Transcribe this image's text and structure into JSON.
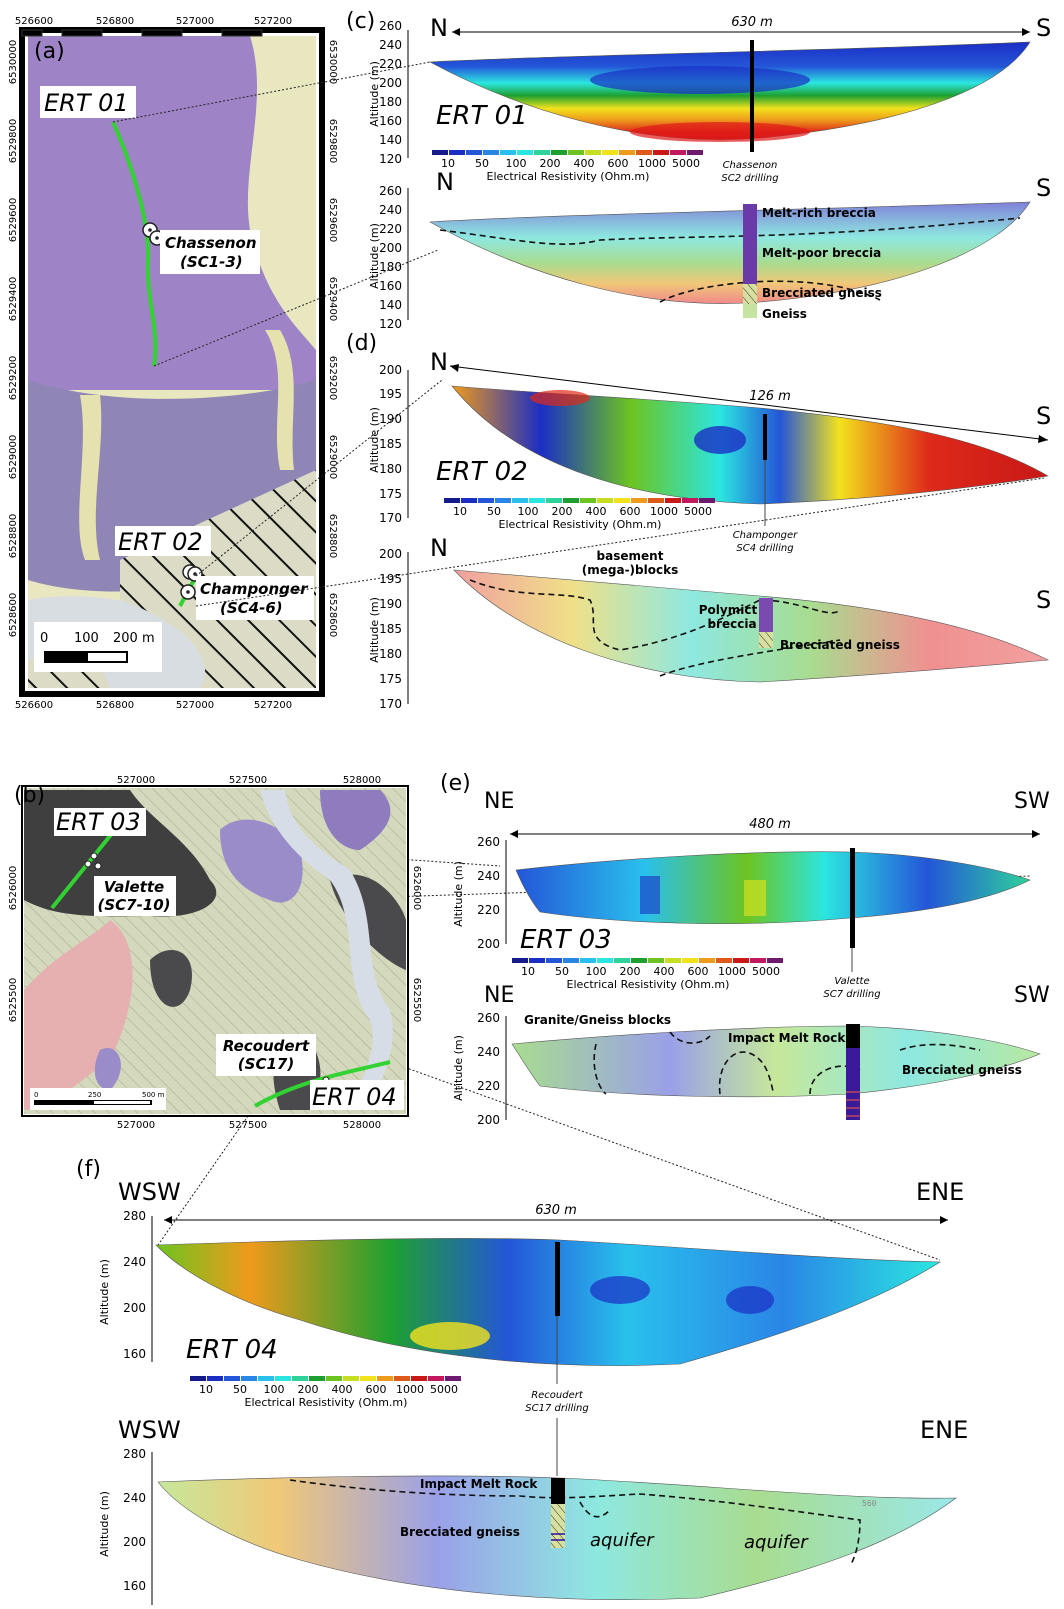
{
  "panels": {
    "a": {
      "label": "(a)",
      "top_ticks": [
        "526600",
        "526800",
        "527000",
        "527200"
      ],
      "bottom_ticks": [
        "526600",
        "526800",
        "527000",
        "527200"
      ],
      "left_ticks": [
        "6530000",
        "6529800",
        "6529600",
        "6529400",
        "6529200",
        "6529000",
        "6528800",
        "6528600"
      ],
      "right_ticks": [
        "6530000",
        "6529800",
        "6529600",
        "6529400",
        "6529200",
        "6529000",
        "6528800",
        "6528600"
      ],
      "ert01_label": "ERT 01",
      "ert02_label": "ERT 02",
      "site1_line1": "Chassenon",
      "site1_line2": "(SC1-3)",
      "site2_line1": "Champonger",
      "site2_line2": "(SC4-6)",
      "scale_labels": [
        "0",
        "100",
        "200 m"
      ]
    },
    "b": {
      "label": "(b)",
      "top_ticks": [
        "527000",
        "527500",
        "528000"
      ],
      "bottom_ticks": [
        "527000",
        "527500",
        "528000"
      ],
      "left_ticks": [
        "6526000",
        "6525500"
      ],
      "right_ticks": [
        "6526000",
        "6525500"
      ],
      "ert03_label": "ERT 03",
      "ert04_label": "ERT 04",
      "site1_line1": "Valette",
      "site1_line2": "(SC7-10)",
      "site2_line1": "Recoudert",
      "site2_line2": "(SC17)",
      "scale_labels": [
        "0",
        "250",
        "500 m"
      ]
    },
    "c": {
      "label": "(c)",
      "left_dir": "N",
      "right_dir": "S",
      "distance": "630 m",
      "profile_name": "ERT 01",
      "ylabel": "Altitude (m)",
      "yticks_top": [
        "260",
        "240",
        "220",
        "200",
        "180",
        "160",
        "140",
        "120"
      ],
      "yticks_bottom": [
        "260",
        "240",
        "220",
        "200",
        "180",
        "160",
        "140",
        "120"
      ],
      "drill_line1": "Chassenon",
      "drill_line2": "SC2 drilling",
      "units": [
        "Melt-rich breccia",
        "Melt-poor breccia",
        "Brecciated gneiss",
        "Gneiss"
      ]
    },
    "d": {
      "label": "(d)",
      "left_dir": "N",
      "right_dir": "S",
      "distance": "126 m",
      "profile_name": "ERT 02",
      "ylabel": "Altitude (m)",
      "yticks_top": [
        "200",
        "195",
        "190",
        "185",
        "180",
        "175",
        "170"
      ],
      "yticks_bottom": [
        "200",
        "195",
        "190",
        "185",
        "180",
        "175",
        "170"
      ],
      "drill_line1": "Champonger",
      "drill_line2": "SC4 drilling",
      "blocks_line1": "basement",
      "blocks_line2": "(mega-)blocks",
      "polymict_line1": "Polymict",
      "polymict_line2": "breccia",
      "gneiss": "Brecciated gneiss"
    },
    "e": {
      "label": "(e)",
      "left_dir": "NE",
      "right_dir": "SW",
      "distance": "480 m",
      "profile_name": "ERT 03",
      "ylabel": "Altitude (m)",
      "yticks_top": [
        "260",
        "240",
        "220",
        "200"
      ],
      "yticks_bottom": [
        "260",
        "240",
        "220",
        "200"
      ],
      "drill_line1": "Valette",
      "drill_line2": "SC7 drilling",
      "blocks": "Granite/Gneiss blocks",
      "melt": "Impact Melt Rock",
      "gneiss": "Brecciated gneiss"
    },
    "f": {
      "label": "(f)",
      "left_dir": "WSW",
      "right_dir": "ENE",
      "distance": "630 m",
      "profile_name": "ERT 04",
      "ylabel": "Altitude (m)",
      "yticks_top": [
        "280",
        "240",
        "200",
        "160"
      ],
      "yticks_bottom": [
        "280",
        "240",
        "200",
        "160"
      ],
      "drill_line1": "Recoudert",
      "drill_line2": "SC17 drilling",
      "melt": "Impact Melt Rock",
      "gneiss": "Brecciated gneiss",
      "aquifer1": "aquifer",
      "aquifer2": "aquifer",
      "stamp": "560"
    }
  },
  "colorbar": {
    "title": "Electrical Resistivity (Ohm.m)",
    "ticks": [
      "10",
      "50",
      "100",
      "200",
      "400",
      "600",
      "1000",
      "5000"
    ],
    "colors": [
      "#141c8c",
      "#1b2ec4",
      "#2456d8",
      "#2a86e6",
      "#29c0ec",
      "#2be6e0",
      "#2fd29a",
      "#1ea030",
      "#6cc420",
      "#c6dd22",
      "#f2e21d",
      "#ee9a1c",
      "#de5a1a",
      "#c81818",
      "#c2185e",
      "#6e1a6e"
    ]
  }
}
